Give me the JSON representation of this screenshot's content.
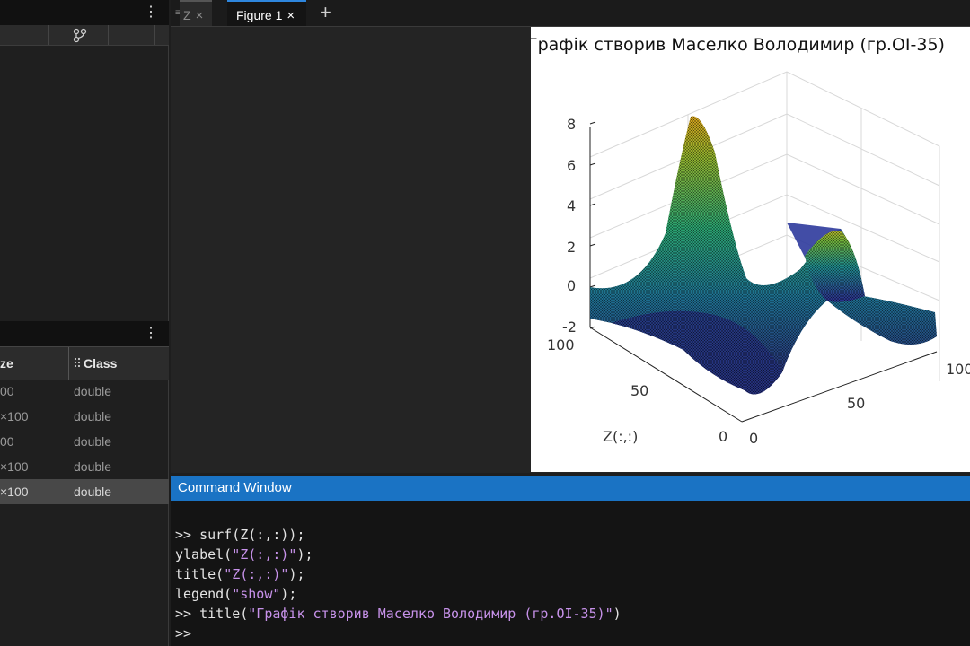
{
  "workspace": {
    "columns": {
      "size_label": "ze",
      "class_label": "Class"
    },
    "rows": [
      {
        "size": "00",
        "class": "double",
        "selected": false
      },
      {
        "size": "×100",
        "class": "double",
        "selected": false
      },
      {
        "size": "00",
        "class": "double",
        "selected": false
      },
      {
        "size": "×100",
        "class": "double",
        "selected": false
      },
      {
        "size": "×100",
        "class": "double",
        "selected": true
      }
    ]
  },
  "tabs": [
    {
      "label": "Z",
      "close": "×",
      "active": false
    },
    {
      "label": "Figure 1",
      "close": "×",
      "active": true
    }
  ],
  "tab_add_label": "+",
  "panel_menu_glyph": "⋮",
  "figure": {
    "title": "Графік створив Маселко Володимир (гр.ОІ-35)",
    "surface_colormap": "parula",
    "chart_data": {
      "type": "surface",
      "title": "Графік створив Маселко Володимир (гр.ОІ-35)",
      "ylabel": "Z(:,:)",
      "xlabel": "",
      "zlabel": "",
      "z_ticks": [
        -2,
        0,
        2,
        4,
        6,
        8
      ],
      "y_ticks": [
        0,
        50,
        100
      ],
      "x_ticks": [
        0,
        50,
        100
      ],
      "zlim": [
        -2,
        8
      ],
      "ylim": [
        0,
        100
      ],
      "xlim": [
        0,
        100
      ],
      "grid": true,
      "peaks": [
        {
          "x": 35,
          "y": 70,
          "z": 8
        },
        {
          "x": 75,
          "y": 40,
          "z": 3.6
        }
      ]
    }
  },
  "command_window": {
    "title": "Command Window",
    "lines": [
      [
        {
          "t": ">> surf(Z(:,:));",
          "s": false
        }
      ],
      [
        {
          "t": "ylabel(",
          "s": false
        },
        {
          "t": "\"Z(:,:)\"",
          "s": true
        },
        {
          "t": ");",
          "s": false
        }
      ],
      [
        {
          "t": "title(",
          "s": false
        },
        {
          "t": "\"Z(:,:)\"",
          "s": true
        },
        {
          "t": ");",
          "s": false
        }
      ],
      [
        {
          "t": "legend(",
          "s": false
        },
        {
          "t": "\"show\"",
          "s": true
        },
        {
          "t": ");",
          "s": false
        }
      ],
      [
        {
          "t": ">> title(",
          "s": false
        },
        {
          "t": "\"Графік створив Маселко Володимир (гр.ОІ-35)\"",
          "s": true
        },
        {
          "t": ")",
          "s": false
        }
      ],
      [
        {
          "t": ">>",
          "s": false
        }
      ]
    ]
  },
  "colors": {
    "accent": "#1a73c4",
    "string": "#c792ea",
    "active_tab": "#2e86de"
  }
}
